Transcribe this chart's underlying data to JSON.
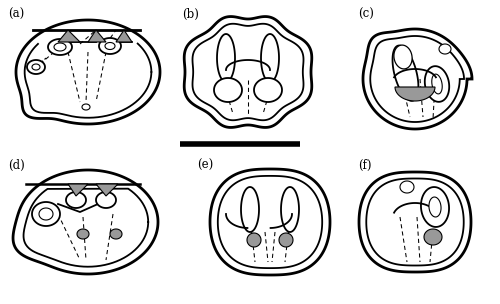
{
  "figure_width": 5.0,
  "figure_height": 3.04,
  "dpi": 100,
  "background_color": "#ffffff",
  "labels": [
    "(a)",
    "(b)",
    "(c)",
    "(d)",
    "(e)",
    "(f)"
  ],
  "label_fontsize": 8.5,
  "scalebar_lw": 4,
  "scalebar_color": "#000000",
  "gray": "#999999",
  "lw_outer": 2.0,
  "lw_inner": 1.3,
  "lw_dash": 0.75
}
